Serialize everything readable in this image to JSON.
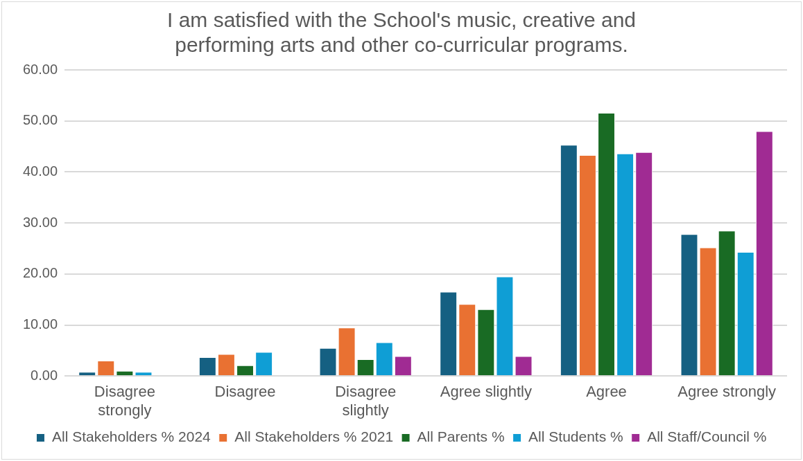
{
  "chart_data": {
    "type": "bar",
    "title": "I am satisfied with the School's music, creative and performing arts and other co-curricular programs.",
    "categories": [
      "Disagree strongly",
      "Disagree",
      "Disagree slightly",
      "Agree slightly",
      "Agree",
      "Agree strongly"
    ],
    "series": [
      {
        "name": "All Stakeholders % 2024",
        "color": "#156082",
        "values": [
          0.8,
          3.7,
          5.5,
          16.5,
          45.3,
          27.8
        ]
      },
      {
        "name": "All Stakeholders % 2021",
        "color": "#e97132",
        "values": [
          3.0,
          4.3,
          9.5,
          14.1,
          43.3,
          25.2
        ]
      },
      {
        "name": "All Parents %",
        "color": "#196b24",
        "values": [
          1.0,
          2.1,
          3.3,
          13.1,
          51.6,
          28.5
        ]
      },
      {
        "name": "All Students %",
        "color": "#0f9ed5",
        "values": [
          0.8,
          4.7,
          6.6,
          19.5,
          43.6,
          24.3
        ]
      },
      {
        "name": "All Staff/Council %",
        "color": "#a02b93",
        "values": [
          0,
          0,
          3.9,
          3.9,
          43.9,
          48.0
        ]
      }
    ],
    "ylim": [
      0,
      60
    ],
    "yticks": [
      {
        "value": 0,
        "label": "0.00"
      },
      {
        "value": 10,
        "label": "10.00"
      },
      {
        "value": 20,
        "label": "20.00"
      },
      {
        "value": 30,
        "label": "30.00"
      },
      {
        "value": 40,
        "label": "40.00"
      },
      {
        "value": 50,
        "label": "50.00"
      },
      {
        "value": 60,
        "label": "60.00"
      }
    ],
    "grid": "y",
    "legend": "bottom"
  }
}
